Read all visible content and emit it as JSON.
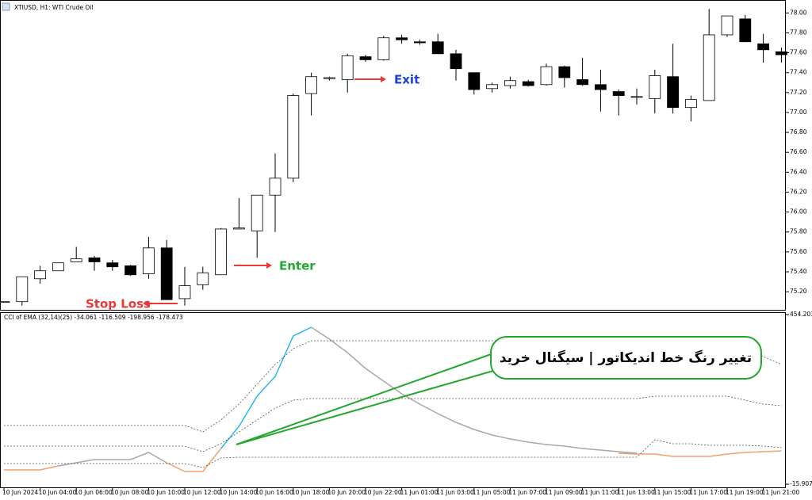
{
  "chart_data": [
    {
      "type": "candlestick",
      "title": "XTIUSD, H1: WTI Crude Oil",
      "categories": [
        "10 Jun 2024",
        null,
        "10 Jun 04:00",
        null,
        "10 Jun 06:00",
        null,
        "10 Jun 08:00",
        null,
        "10 Jun 10:00",
        null,
        "10 Jun 12:00",
        null,
        "10 Jun 14:00",
        null,
        "10 Jun 16:00",
        null,
        "10 Jun 18:00",
        null,
        "10 Jun 20:00",
        null,
        "10 Jun 22:00",
        null,
        "11 Jun 01:00",
        null,
        "11 Jun 03:00",
        null,
        "11 Jun 05:00",
        null,
        "11 Jun 07:00",
        null,
        "11 Jun 09:00",
        null,
        "11 Jun 11:00",
        null,
        "11 Jun 13:00",
        null,
        "11 Jun 15:00",
        null,
        "11 Jun 17:00",
        null,
        "11 Jun 19:00",
        null,
        "11 Jun 21:00",
        null
      ],
      "open": [
        75.1,
        75.1,
        75.33,
        75.41,
        75.5,
        75.54,
        75.49,
        75.46,
        75.38,
        75.64,
        75.13,
        75.27,
        75.37,
        75.83,
        75.81,
        76.17,
        76.34,
        77.19,
        77.34,
        77.33,
        77.56,
        77.53,
        77.75,
        77.71,
        77.71,
        77.59,
        77.4,
        77.24,
        77.27,
        77.31,
        77.28,
        77.46,
        77.33,
        77.28,
        77.21,
        77.16,
        77.14,
        77.36,
        77.05,
        77.12,
        77.78,
        77.94,
        77.69,
        77.61
      ],
      "high": [
        75.1,
        75.35,
        75.46,
        75.49,
        75.65,
        75.56,
        75.52,
        75.47,
        75.75,
        75.72,
        75.45,
        75.45,
        75.84,
        76.14,
        76.17,
        76.59,
        77.19,
        77.4,
        77.36,
        77.59,
        77.58,
        77.77,
        77.78,
        77.73,
        77.79,
        77.63,
        77.4,
        77.3,
        77.36,
        77.33,
        77.49,
        77.47,
        77.55,
        77.43,
        77.23,
        77.24,
        77.43,
        77.69,
        77.17,
        78.04,
        77.97,
        77.98,
        77.79,
        77.65
      ],
      "low": [
        75.1,
        75.06,
        75.28,
        75.41,
        75.5,
        75.41,
        75.41,
        75.36,
        75.33,
        75.12,
        75.06,
        75.22,
        75.37,
        75.83,
        75.54,
        75.8,
        76.3,
        76.97,
        77.32,
        77.2,
        77.51,
        77.52,
        77.69,
        77.68,
        77.59,
        77.32,
        77.18,
        77.2,
        77.24,
        77.26,
        77.27,
        77.25,
        77.27,
        77.01,
        76.97,
        77.08,
        76.99,
        76.99,
        76.91,
        77.12,
        77.76,
        77.71,
        77.5,
        77.5
      ],
      "close": [
        75.1,
        75.35,
        75.41,
        75.49,
        75.53,
        75.5,
        75.45,
        75.37,
        75.64,
        75.12,
        75.26,
        75.39,
        75.83,
        75.84,
        76.17,
        76.34,
        77.17,
        77.36,
        77.35,
        77.57,
        77.53,
        77.75,
        77.73,
        77.7,
        77.59,
        77.44,
        77.23,
        77.28,
        77.32,
        77.27,
        77.46,
        77.35,
        77.28,
        77.23,
        77.17,
        77.16,
        77.37,
        77.05,
        77.13,
        77.78,
        77.97,
        77.71,
        77.63,
        77.58
      ],
      "up_color": "#ffffff",
      "down_color": "#000000",
      "ylim": [
        75.01,
        78.09
      ],
      "yticks": [
        {
          "value": 75.2,
          "label": "75.20"
        },
        {
          "value": 75.4,
          "label": "75.40"
        },
        {
          "value": 75.6,
          "label": "75.60"
        },
        {
          "value": 75.8,
          "label": "75.80"
        },
        {
          "value": 76.0,
          "label": "76.00"
        },
        {
          "value": 76.2,
          "label": "76.20"
        },
        {
          "value": 76.4,
          "label": "76.40"
        },
        {
          "value": 76.6,
          "label": "76.60"
        },
        {
          "value": 76.8,
          "label": "76.80"
        },
        {
          "value": 77.0,
          "label": "77.00"
        },
        {
          "value": 77.2,
          "label": "77.20"
        },
        {
          "value": 77.4,
          "label": "77.40"
        },
        {
          "value": 77.6,
          "label": "77.60"
        },
        {
          "value": 77.8,
          "label": "77.80"
        },
        {
          "value": 78.0,
          "label": "78.00"
        }
      ],
      "annotations": [
        {
          "text": "Exit",
          "color": "#1e3fd8"
        },
        {
          "text": "Enter",
          "color": "#22a830"
        },
        {
          "text": "Stop Loss",
          "color": "#e8383a"
        }
      ]
    },
    {
      "type": "line",
      "title": "CCI of EMA (32,14)(25) -34.061 -116.509 -198.956 -178.473",
      "series": [
        {
          "color": "#f4a06a",
          "dash": false,
          "values": [
            23.6,
            23.6,
            23.6,
            34.6,
            null,
            null,
            null,
            null,
            null,
            43.4,
            19.2,
            19.2,
            82.9,
            null,
            null,
            null,
            null,
            null,
            null,
            null,
            null,
            null,
            null,
            null,
            null,
            null,
            null,
            null,
            null,
            null,
            null,
            null,
            null,
            null,
            69.7,
            67.5,
            67.5,
            60.9,
            60.9,
            60.9,
            67.5,
            71.9,
            74.1,
            76.3
          ]
        },
        {
          "color": "#a8a8a8",
          "dash": false,
          "values": [
            null,
            null,
            null,
            34.6,
            43.4,
            52.2,
            52.2,
            52.2,
            71.9,
            43.4,
            null,
            null,
            null,
            null,
            null,
            null,
            null,
            419.0,
            386.1,
            348.7,
            304.8,
            269.6,
            234.5,
            205.9,
            179.6,
            155.4,
            135.6,
            120.3,
            109.3,
            100.5,
            93.9,
            89.5,
            82.9,
            78.5,
            74.1,
            69.7,
            null,
            null,
            null,
            null,
            null,
            null,
            null,
            null
          ]
        },
        {
          "color": "#29b6ee",
          "dash": false,
          "values": [
            null,
            null,
            null,
            null,
            null,
            null,
            null,
            null,
            null,
            null,
            null,
            null,
            82.9,
            144.4,
            227.9,
            282.8,
            394.9,
            419.0,
            null,
            null,
            null,
            null,
            null,
            null,
            null,
            null,
            null,
            null,
            null,
            null,
            null,
            null,
            null,
            null,
            null,
            null,
            null,
            null,
            null,
            null,
            null,
            null,
            null,
            null
          ]
        },
        {
          "color": "#555555",
          "dash": true,
          "values": [
            146.6,
            146.6,
            146.6,
            146.6,
            146.6,
            146.6,
            146.6,
            146.6,
            146.6,
            146.6,
            146.6,
            129.0,
            162.0,
            205.9,
            260.9,
            315.8,
            359.7,
            381.7,
            381.7,
            381.7,
            381.7,
            381.7,
            381.7,
            381.7,
            381.7,
            381.7,
            381.7,
            381.7,
            381.7,
            381.7,
            381.7,
            381.7,
            381.7,
            381.7,
            381.7,
            381.7,
            381.7,
            381.7,
            381.7,
            381.7,
            381.7,
            359.7,
            337.8,
            315.8
          ]
        },
        {
          "color": "#555555",
          "dash": true,
          "values": [
            89.5,
            89.5,
            89.5,
            89.5,
            89.5,
            89.5,
            89.5,
            89.5,
            89.5,
            89.5,
            89.5,
            74.1,
            96.1,
            129.0,
            162.0,
            194.9,
            216.9,
            221.3,
            221.3,
            221.3,
            221.3,
            221.3,
            221.3,
            221.3,
            221.3,
            221.3,
            221.3,
            221.3,
            221.3,
            221.3,
            221.3,
            221.3,
            221.3,
            221.3,
            221.3,
            221.3,
            227.9,
            227.9,
            227.9,
            227.9,
            227.9,
            216.9,
            205.9,
            201.5
          ]
        },
        {
          "color": "#555555",
          "dash": true,
          "values": [
            41.2,
            41.2,
            41.2,
            41.2,
            41.2,
            41.2,
            41.2,
            41.2,
            41.2,
            41.2,
            41.2,
            30.2,
            56.6,
            58.8,
            58.8,
            58.8,
            58.8,
            58.8,
            58.8,
            58.8,
            58.8,
            58.8,
            58.8,
            58.8,
            58.8,
            58.8,
            58.8,
            58.8,
            58.8,
            58.8,
            58.8,
            58.8,
            58.8,
            58.8,
            58.8,
            58.8,
            107.1,
            96.1,
            96.1,
            91.7,
            91.7,
            91.7,
            89.5,
            85.3
          ]
        }
      ],
      "ylim": [
        -15.907,
        454.203
      ],
      "yticks": [
        -15.907,
        454.203
      ],
      "annotations": [
        {
          "text": "تغییر رنگ خط اندیکاتور | سیگنال خرید",
          "color": "#22a830"
        }
      ]
    }
  ]
}
